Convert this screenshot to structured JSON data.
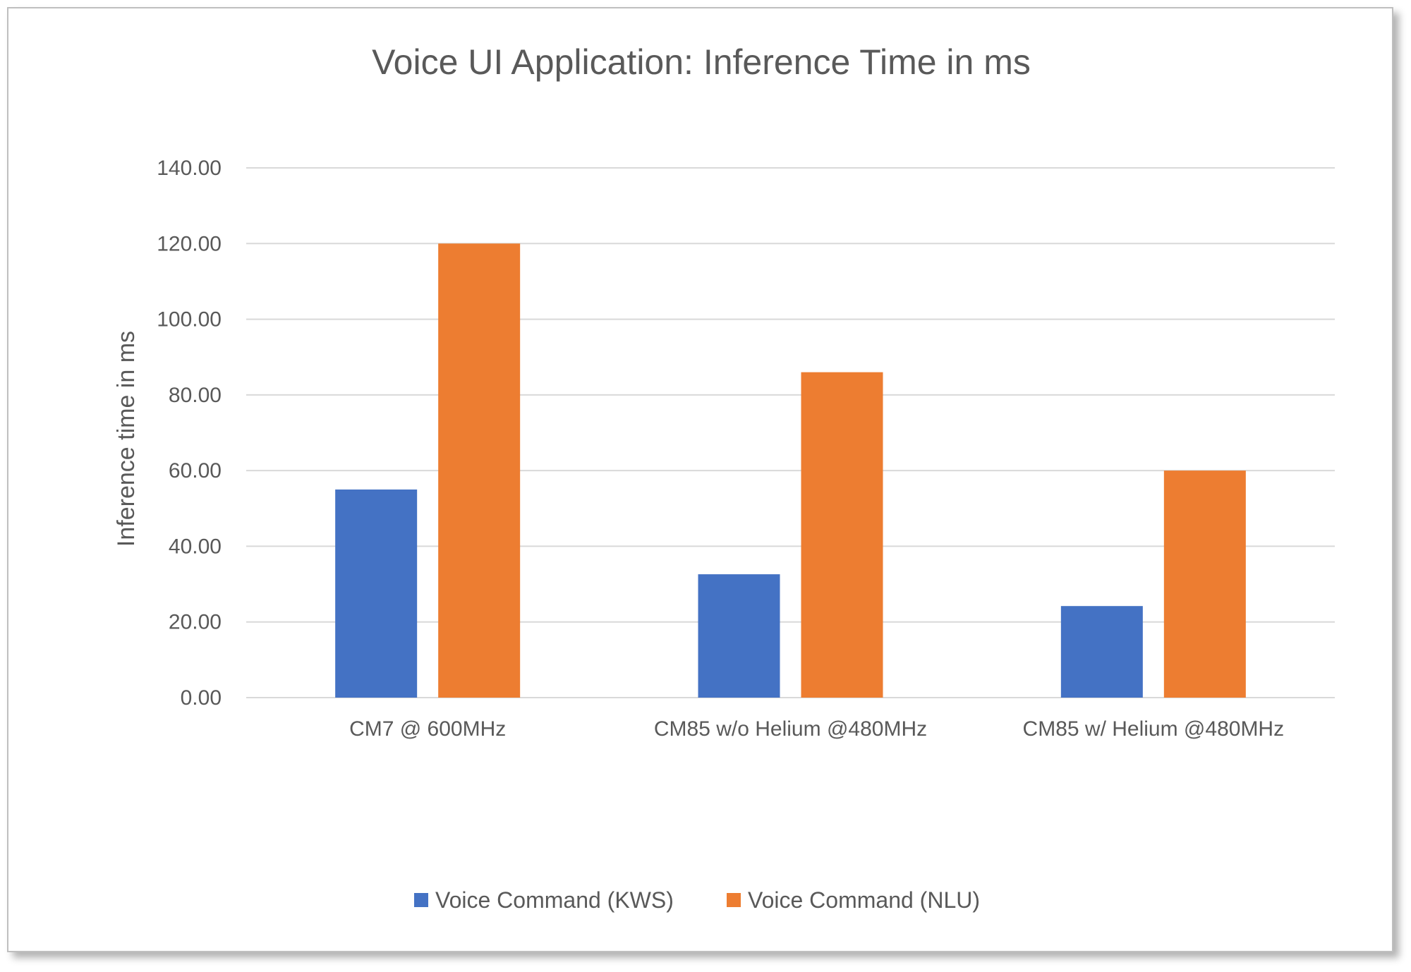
{
  "chart_data": {
    "type": "bar",
    "title": "Voice UI Application: Inference Time in ms",
    "xlabel": "",
    "ylabel": "Inference time in ms",
    "categories": [
      "CM7 @ 600MHz",
      "CM85 w/o Helium @480MHz",
      "CM85 w/ Helium @480MHz"
    ],
    "series": [
      {
        "name": "Voice Command (KWS)",
        "color": "#4472c4",
        "values": [
          55.0,
          32.6,
          24.2
        ]
      },
      {
        "name": "Voice Command (NLU)",
        "color": "#ed7d31",
        "values": [
          120.0,
          86.0,
          60.0
        ]
      }
    ],
    "ylim": [
      0,
      140
    ],
    "yticks": [
      "0.00",
      "20.00",
      "40.00",
      "60.00",
      "80.00",
      "100.00",
      "120.00",
      "140.00"
    ],
    "grid": true,
    "legend": "bottom"
  }
}
